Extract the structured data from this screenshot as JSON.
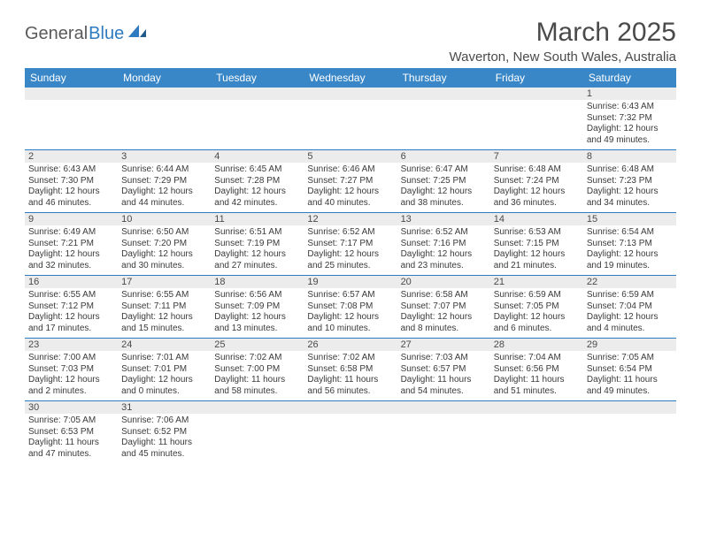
{
  "logo": {
    "part1": "General",
    "part2": "Blue"
  },
  "title": "March 2025",
  "location": "Waverton, New South Wales, Australia",
  "header_bg": "#3a87c8",
  "border_color": "#2f7bbf",
  "text_color": "#3a3a3a",
  "days": [
    "Sunday",
    "Monday",
    "Tuesday",
    "Wednesday",
    "Thursday",
    "Friday",
    "Saturday"
  ],
  "weeks": [
    [
      null,
      null,
      null,
      null,
      null,
      null,
      {
        "n": "1",
        "sr": "Sunrise: 6:43 AM",
        "ss": "Sunset: 7:32 PM",
        "d1": "Daylight: 12 hours",
        "d2": "and 49 minutes."
      }
    ],
    [
      {
        "n": "2",
        "sr": "Sunrise: 6:43 AM",
        "ss": "Sunset: 7:30 PM",
        "d1": "Daylight: 12 hours",
        "d2": "and 46 minutes."
      },
      {
        "n": "3",
        "sr": "Sunrise: 6:44 AM",
        "ss": "Sunset: 7:29 PM",
        "d1": "Daylight: 12 hours",
        "d2": "and 44 minutes."
      },
      {
        "n": "4",
        "sr": "Sunrise: 6:45 AM",
        "ss": "Sunset: 7:28 PM",
        "d1": "Daylight: 12 hours",
        "d2": "and 42 minutes."
      },
      {
        "n": "5",
        "sr": "Sunrise: 6:46 AM",
        "ss": "Sunset: 7:27 PM",
        "d1": "Daylight: 12 hours",
        "d2": "and 40 minutes."
      },
      {
        "n": "6",
        "sr": "Sunrise: 6:47 AM",
        "ss": "Sunset: 7:25 PM",
        "d1": "Daylight: 12 hours",
        "d2": "and 38 minutes."
      },
      {
        "n": "7",
        "sr": "Sunrise: 6:48 AM",
        "ss": "Sunset: 7:24 PM",
        "d1": "Daylight: 12 hours",
        "d2": "and 36 minutes."
      },
      {
        "n": "8",
        "sr": "Sunrise: 6:48 AM",
        "ss": "Sunset: 7:23 PM",
        "d1": "Daylight: 12 hours",
        "d2": "and 34 minutes."
      }
    ],
    [
      {
        "n": "9",
        "sr": "Sunrise: 6:49 AM",
        "ss": "Sunset: 7:21 PM",
        "d1": "Daylight: 12 hours",
        "d2": "and 32 minutes."
      },
      {
        "n": "10",
        "sr": "Sunrise: 6:50 AM",
        "ss": "Sunset: 7:20 PM",
        "d1": "Daylight: 12 hours",
        "d2": "and 30 minutes."
      },
      {
        "n": "11",
        "sr": "Sunrise: 6:51 AM",
        "ss": "Sunset: 7:19 PM",
        "d1": "Daylight: 12 hours",
        "d2": "and 27 minutes."
      },
      {
        "n": "12",
        "sr": "Sunrise: 6:52 AM",
        "ss": "Sunset: 7:17 PM",
        "d1": "Daylight: 12 hours",
        "d2": "and 25 minutes."
      },
      {
        "n": "13",
        "sr": "Sunrise: 6:52 AM",
        "ss": "Sunset: 7:16 PM",
        "d1": "Daylight: 12 hours",
        "d2": "and 23 minutes."
      },
      {
        "n": "14",
        "sr": "Sunrise: 6:53 AM",
        "ss": "Sunset: 7:15 PM",
        "d1": "Daylight: 12 hours",
        "d2": "and 21 minutes."
      },
      {
        "n": "15",
        "sr": "Sunrise: 6:54 AM",
        "ss": "Sunset: 7:13 PM",
        "d1": "Daylight: 12 hours",
        "d2": "and 19 minutes."
      }
    ],
    [
      {
        "n": "16",
        "sr": "Sunrise: 6:55 AM",
        "ss": "Sunset: 7:12 PM",
        "d1": "Daylight: 12 hours",
        "d2": "and 17 minutes."
      },
      {
        "n": "17",
        "sr": "Sunrise: 6:55 AM",
        "ss": "Sunset: 7:11 PM",
        "d1": "Daylight: 12 hours",
        "d2": "and 15 minutes."
      },
      {
        "n": "18",
        "sr": "Sunrise: 6:56 AM",
        "ss": "Sunset: 7:09 PM",
        "d1": "Daylight: 12 hours",
        "d2": "and 13 minutes."
      },
      {
        "n": "19",
        "sr": "Sunrise: 6:57 AM",
        "ss": "Sunset: 7:08 PM",
        "d1": "Daylight: 12 hours",
        "d2": "and 10 minutes."
      },
      {
        "n": "20",
        "sr": "Sunrise: 6:58 AM",
        "ss": "Sunset: 7:07 PM",
        "d1": "Daylight: 12 hours",
        "d2": "and 8 minutes."
      },
      {
        "n": "21",
        "sr": "Sunrise: 6:59 AM",
        "ss": "Sunset: 7:05 PM",
        "d1": "Daylight: 12 hours",
        "d2": "and 6 minutes."
      },
      {
        "n": "22",
        "sr": "Sunrise: 6:59 AM",
        "ss": "Sunset: 7:04 PM",
        "d1": "Daylight: 12 hours",
        "d2": "and 4 minutes."
      }
    ],
    [
      {
        "n": "23",
        "sr": "Sunrise: 7:00 AM",
        "ss": "Sunset: 7:03 PM",
        "d1": "Daylight: 12 hours",
        "d2": "and 2 minutes."
      },
      {
        "n": "24",
        "sr": "Sunrise: 7:01 AM",
        "ss": "Sunset: 7:01 PM",
        "d1": "Daylight: 12 hours",
        "d2": "and 0 minutes."
      },
      {
        "n": "25",
        "sr": "Sunrise: 7:02 AM",
        "ss": "Sunset: 7:00 PM",
        "d1": "Daylight: 11 hours",
        "d2": "and 58 minutes."
      },
      {
        "n": "26",
        "sr": "Sunrise: 7:02 AM",
        "ss": "Sunset: 6:58 PM",
        "d1": "Daylight: 11 hours",
        "d2": "and 56 minutes."
      },
      {
        "n": "27",
        "sr": "Sunrise: 7:03 AM",
        "ss": "Sunset: 6:57 PM",
        "d1": "Daylight: 11 hours",
        "d2": "and 54 minutes."
      },
      {
        "n": "28",
        "sr": "Sunrise: 7:04 AM",
        "ss": "Sunset: 6:56 PM",
        "d1": "Daylight: 11 hours",
        "d2": "and 51 minutes."
      },
      {
        "n": "29",
        "sr": "Sunrise: 7:05 AM",
        "ss": "Sunset: 6:54 PM",
        "d1": "Daylight: 11 hours",
        "d2": "and 49 minutes."
      }
    ],
    [
      {
        "n": "30",
        "sr": "Sunrise: 7:05 AM",
        "ss": "Sunset: 6:53 PM",
        "d1": "Daylight: 11 hours",
        "d2": "and 47 minutes."
      },
      {
        "n": "31",
        "sr": "Sunrise: 7:06 AM",
        "ss": "Sunset: 6:52 PM",
        "d1": "Daylight: 11 hours",
        "d2": "and 45 minutes."
      },
      null,
      null,
      null,
      null,
      null
    ]
  ]
}
